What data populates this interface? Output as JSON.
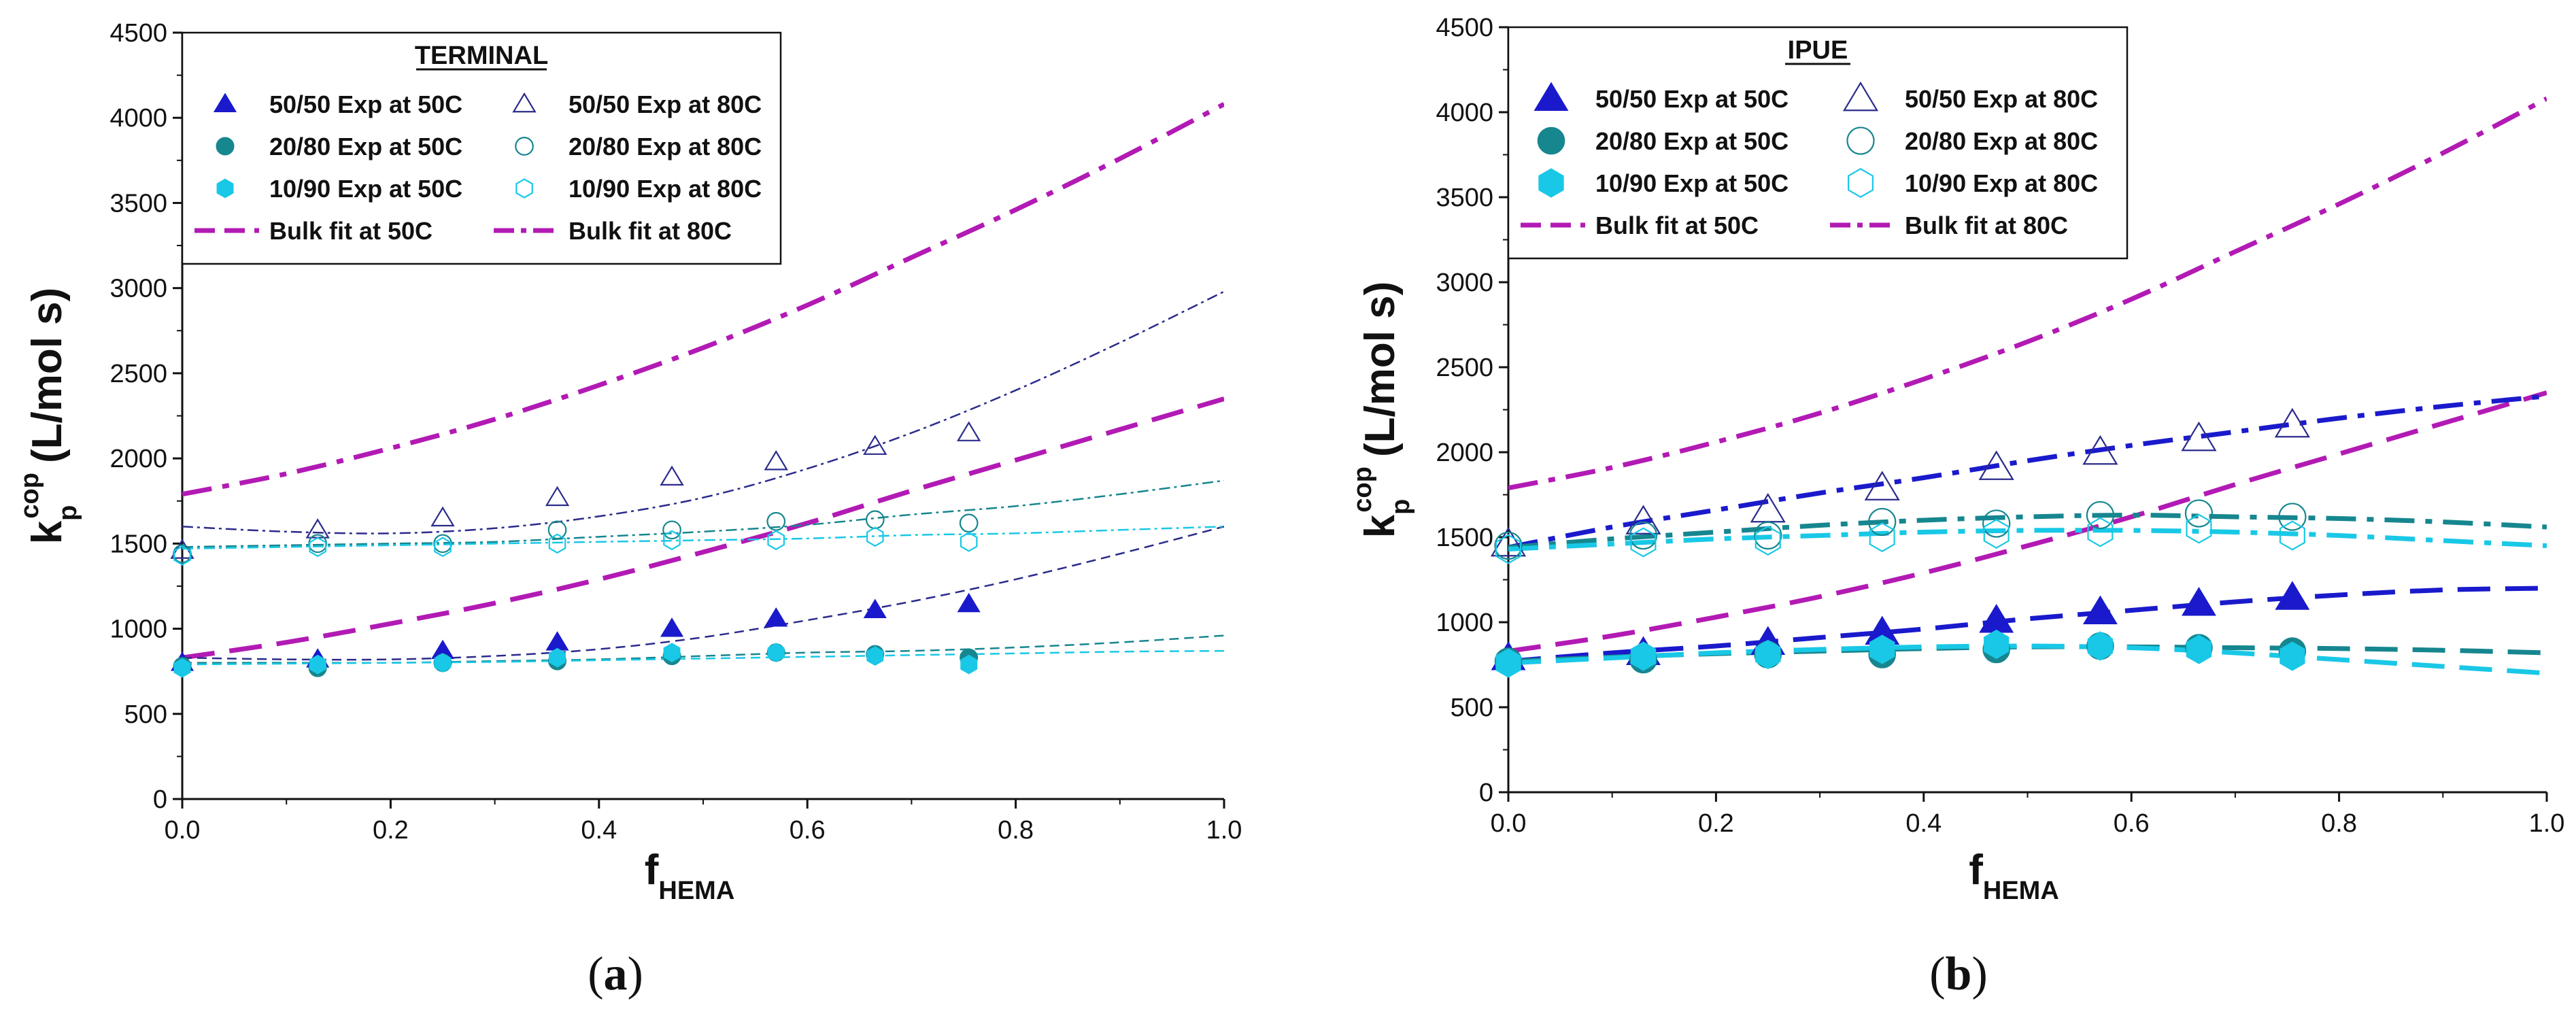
{
  "styles": {
    "colors": {
      "blue": "#1a1acc",
      "teal": "#16868f",
      "cyan": "#19c8e6",
      "magenta": "#b21ab4",
      "navy": "#2b2b8c"
    }
  },
  "chart_data": [
    {
      "type": "scatter",
      "panel": "a",
      "caption": "(a)",
      "title": "TERMINAL",
      "xlabel": "f",
      "xlabel_sub": "HEMA",
      "ylabel": "k",
      "ylabel_sub": "p",
      "ylabel_sup": "cop",
      "ylabel_units": "(L/mol s)",
      "xlim": [
        0,
        1
      ],
      "ylim": [
        0,
        4500
      ],
      "xticks": [
        0,
        0.2,
        0.4,
        0.6,
        0.8,
        1.0
      ],
      "xtick_labels": [
        "0.0",
        "0.2",
        "0.4",
        "0.6",
        "0.8",
        "1.0"
      ],
      "yticks": [
        0,
        500,
        1000,
        1500,
        2000,
        2500,
        3000,
        3500,
        4000,
        4500
      ],
      "ytick_labels": [
        "0",
        "500",
        "1000",
        "1500",
        "2000",
        "2500",
        "3000",
        "3500",
        "4000",
        "4500"
      ],
      "legend_position": "top-center",
      "legend": [
        {
          "label": "50/50 Exp at 50C",
          "marker": "triangle",
          "fill": true,
          "color": "blue"
        },
        {
          "label": "50/50 Exp at 80C",
          "marker": "triangle",
          "fill": false,
          "color": "navy"
        },
        {
          "label": "20/80 Exp at 50C",
          "marker": "circle",
          "fill": true,
          "color": "teal"
        },
        {
          "label": "20/80 Exp at 80C",
          "marker": "circle",
          "fill": false,
          "color": "teal"
        },
        {
          "label": "10/90 Exp at 50C",
          "marker": "hexagon",
          "fill": true,
          "color": "cyan"
        },
        {
          "label": "10/90 Exp at 80C",
          "marker": "hexagon",
          "fill": false,
          "color": "cyan"
        },
        {
          "label": "Bulk fit at 50C",
          "line": "dash",
          "color": "magenta"
        },
        {
          "label": "Bulk fit at 80C",
          "line": "dashdot",
          "color": "magenta"
        }
      ],
      "marker_size": "small",
      "x": [
        0,
        0.13,
        0.25,
        0.36,
        0.47,
        0.57,
        0.665,
        0.755
      ],
      "series": [
        {
          "name": "50/50 Exp at 50C",
          "color": "blue",
          "marker": "triangle",
          "fill": true,
          "values": [
            800,
            820,
            870,
            920,
            1000,
            1060,
            1110,
            1145
          ]
        },
        {
          "name": "50/50 Exp at 80C",
          "color": "navy",
          "marker": "triangle",
          "fill": false,
          "values": [
            1460,
            1580,
            1650,
            1770,
            1890,
            1980,
            2070,
            2150
          ]
        },
        {
          "name": "20/80 Exp at 50C",
          "color": "teal",
          "marker": "circle",
          "fill": true,
          "values": [
            780,
            770,
            800,
            810,
            840,
            860,
            850,
            830
          ]
        },
        {
          "name": "20/80 Exp at 80C",
          "color": "teal",
          "marker": "circle",
          "fill": false,
          "values": [
            1440,
            1500,
            1500,
            1580,
            1580,
            1630,
            1640,
            1620
          ]
        },
        {
          "name": "10/90 Exp at 50C",
          "color": "cyan",
          "marker": "hexagon",
          "fill": true,
          "values": [
            770,
            790,
            800,
            830,
            860,
            860,
            840,
            790
          ]
        },
        {
          "name": "10/90 Exp at 80C",
          "color": "cyan",
          "marker": "hexagon",
          "fill": false,
          "values": [
            1430,
            1480,
            1480,
            1500,
            1520,
            1520,
            1540,
            1510
          ]
        }
      ],
      "fit_x": [
        0,
        0.1,
        0.2,
        0.3,
        0.4,
        0.5,
        0.6,
        0.7,
        0.8,
        0.9,
        1.0
      ],
      "fits": [
        {
          "name": "Bulk fit at 50C",
          "color": "magenta",
          "dash": "heavy-dash",
          "values": [
            830,
            920,
            1030,
            1150,
            1290,
            1450,
            1620,
            1810,
            1990,
            2170,
            2350
          ]
        },
        {
          "name": "Bulk fit at 80C",
          "color": "magenta",
          "dash": "heavy-dashdot",
          "values": [
            1790,
            1910,
            2060,
            2230,
            2430,
            2650,
            2900,
            3180,
            3460,
            3760,
            4080
          ]
        },
        {
          "name": "50/50 80C model",
          "color": "navy",
          "dash": "thin-dashdot",
          "values": [
            1600,
            1570,
            1560,
            1590,
            1660,
            1770,
            1940,
            2150,
            2400,
            2680,
            2980
          ]
        },
        {
          "name": "50/50 50C model",
          "color": "navy",
          "dash": "thin-dash",
          "values": [
            830,
            820,
            820,
            840,
            880,
            950,
            1050,
            1160,
            1290,
            1440,
            1600
          ]
        },
        {
          "name": "20/80 80C model",
          "color": "teal",
          "dash": "thin-dashdot",
          "values": [
            1480,
            1490,
            1500,
            1510,
            1540,
            1570,
            1610,
            1670,
            1720,
            1790,
            1870
          ]
        },
        {
          "name": "20/80 50C model",
          "color": "teal",
          "dash": "thin-dash",
          "values": [
            800,
            800,
            800,
            810,
            820,
            840,
            860,
            870,
            890,
            920,
            960
          ]
        },
        {
          "name": "10/90 80C model",
          "color": "cyan",
          "dash": "thin-dashdot",
          "values": [
            1470,
            1480,
            1490,
            1500,
            1510,
            1520,
            1530,
            1550,
            1560,
            1580,
            1600
          ]
        },
        {
          "name": "10/90 50C model",
          "color": "cyan",
          "dash": "thin-dash",
          "values": [
            790,
            795,
            800,
            805,
            815,
            825,
            835,
            845,
            855,
            865,
            870
          ]
        }
      ]
    },
    {
      "type": "scatter",
      "panel": "b",
      "caption": "(b)",
      "title": "IPUE",
      "xlabel": "f",
      "xlabel_sub": "HEMA",
      "ylabel": "k",
      "ylabel_sub": "p",
      "ylabel_sup": "cop",
      "ylabel_units": "(L/mol s)",
      "xlim": [
        0,
        1
      ],
      "ylim": [
        0,
        4500
      ],
      "xticks": [
        0,
        0.2,
        0.4,
        0.6,
        0.8,
        1.0
      ],
      "xtick_labels": [
        "0.0",
        "0.2",
        "0.4",
        "0.6",
        "0.8",
        "1.0"
      ],
      "yticks": [
        0,
        500,
        1000,
        1500,
        2000,
        2500,
        3000,
        3500,
        4000,
        4500
      ],
      "ytick_labels": [
        "0",
        "500",
        "1000",
        "1500",
        "2000",
        "2500",
        "3000",
        "3500",
        "4000",
        "4500"
      ],
      "legend_position": "top-center",
      "legend": [
        {
          "label": "50/50 Exp at 50C",
          "marker": "triangle",
          "fill": true,
          "color": "blue"
        },
        {
          "label": "50/50 Exp at 80C",
          "marker": "triangle",
          "fill": false,
          "color": "navy"
        },
        {
          "label": "20/80 Exp at 50C",
          "marker": "circle",
          "fill": true,
          "color": "teal"
        },
        {
          "label": "20/80 Exp at 80C",
          "marker": "circle",
          "fill": false,
          "color": "teal"
        },
        {
          "label": "10/90 Exp at 50C",
          "marker": "hexagon",
          "fill": true,
          "color": "cyan"
        },
        {
          "label": "10/90 Exp at 80C",
          "marker": "hexagon",
          "fill": false,
          "color": "cyan"
        },
        {
          "label": "Bulk fit at 50C",
          "line": "dash",
          "color": "magenta"
        },
        {
          "label": "Bulk fit at 80C",
          "line": "dashdot",
          "color": "magenta"
        }
      ],
      "marker_size": "large",
      "x": [
        0,
        0.13,
        0.25,
        0.36,
        0.47,
        0.57,
        0.665,
        0.755
      ],
      "series": [
        {
          "name": "50/50 Exp at 50C",
          "color": "blue",
          "marker": "triangle",
          "fill": true,
          "values": [
            790,
            820,
            880,
            940,
            1010,
            1060,
            1110,
            1145
          ]
        },
        {
          "name": "50/50 Exp at 80C",
          "color": "navy",
          "marker": "triangle",
          "fill": false,
          "values": [
            1460,
            1590,
            1660,
            1790,
            1910,
            2000,
            2080,
            2160
          ]
        },
        {
          "name": "20/80 Exp at 50C",
          "color": "teal",
          "marker": "circle",
          "fill": true,
          "values": [
            770,
            780,
            810,
            810,
            840,
            860,
            850,
            830
          ]
        },
        {
          "name": "20/80 Exp at 80C",
          "color": "teal",
          "marker": "circle",
          "fill": false,
          "values": [
            1450,
            1510,
            1510,
            1590,
            1580,
            1630,
            1640,
            1620
          ]
        },
        {
          "name": "10/90 Exp at 50C",
          "color": "cyan",
          "marker": "hexagon",
          "fill": true,
          "values": [
            760,
            800,
            810,
            840,
            870,
            860,
            840,
            800
          ]
        },
        {
          "name": "10/90 Exp at 80C",
          "color": "cyan",
          "marker": "hexagon",
          "fill": false,
          "values": [
            1430,
            1470,
            1480,
            1500,
            1520,
            1530,
            1550,
            1510
          ]
        }
      ],
      "fit_x": [
        0,
        0.1,
        0.2,
        0.3,
        0.4,
        0.5,
        0.6,
        0.7,
        0.8,
        0.9,
        1.0
      ],
      "fits": [
        {
          "name": "Bulk fit at 50C",
          "color": "magenta",
          "dash": "heavy-dash",
          "values": [
            830,
            920,
            1030,
            1150,
            1290,
            1450,
            1620,
            1810,
            1990,
            2170,
            2350
          ]
        },
        {
          "name": "Bulk fit at 80C",
          "color": "magenta",
          "dash": "heavy-dashdot",
          "values": [
            1790,
            1910,
            2060,
            2230,
            2430,
            2650,
            2900,
            3180,
            3460,
            3760,
            4080
          ]
        },
        {
          "name": "50/50 80C model",
          "color": "blue",
          "dash": "heavy-dashdot",
          "values": [
            1440,
            1560,
            1660,
            1760,
            1850,
            1950,
            2040,
            2120,
            2200,
            2270,
            2330
          ]
        },
        {
          "name": "50/50 50C model",
          "color": "blue",
          "dash": "heavy-dash",
          "values": [
            770,
            820,
            860,
            910,
            960,
            1020,
            1070,
            1120,
            1160,
            1190,
            1200
          ]
        },
        {
          "name": "20/80 80C model",
          "color": "teal",
          "dash": "heavy-dashdot",
          "values": [
            1440,
            1490,
            1530,
            1570,
            1600,
            1620,
            1630,
            1620,
            1610,
            1590,
            1560
          ]
        },
        {
          "name": "20/80 50C model",
          "color": "teal",
          "dash": "heavy-dash",
          "values": [
            770,
            795,
            815,
            830,
            845,
            855,
            855,
            850,
            845,
            835,
            820
          ]
        },
        {
          "name": "10/90 80C model",
          "color": "cyan",
          "dash": "heavy-dashdot",
          "values": [
            1430,
            1460,
            1490,
            1510,
            1530,
            1540,
            1540,
            1530,
            1510,
            1480,
            1450
          ]
        },
        {
          "name": "10/90 50C model",
          "color": "cyan",
          "dash": "heavy-dash",
          "values": [
            760,
            790,
            820,
            840,
            855,
            860,
            850,
            820,
            780,
            740,
            700
          ]
        }
      ]
    }
  ]
}
